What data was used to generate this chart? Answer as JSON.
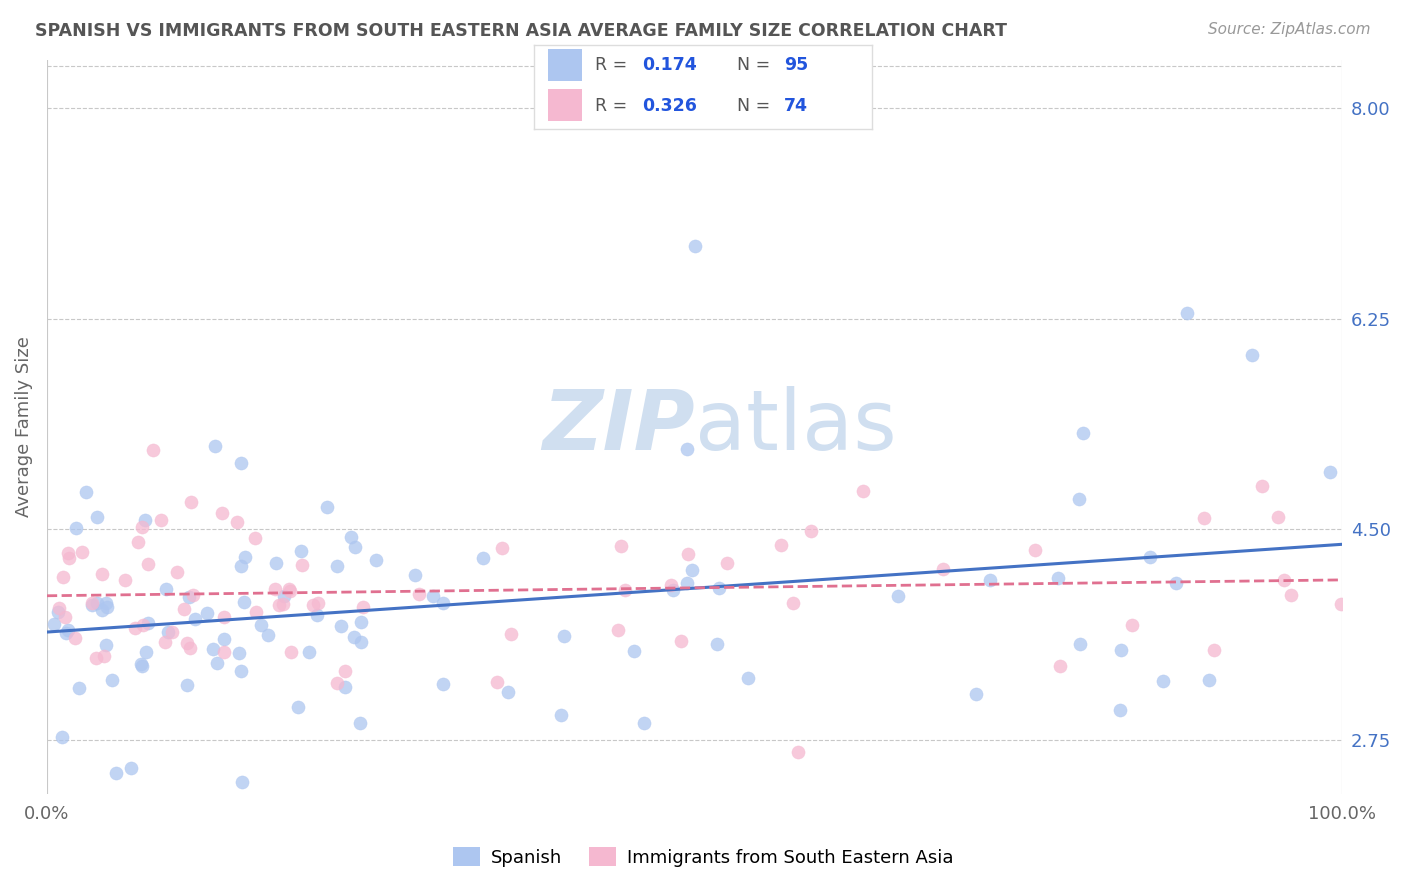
{
  "title": "SPANISH VS IMMIGRANTS FROM SOUTH EASTERN ASIA AVERAGE FAMILY SIZE CORRELATION CHART",
  "source_text": "Source: ZipAtlas.com",
  "ylabel": "Average Family Size",
  "xlim": [
    0,
    100
  ],
  "ylim": [
    2.3,
    8.4
  ],
  "yticks_right": [
    2.75,
    4.5,
    6.25,
    8.0
  ],
  "bg_color": "#ffffff",
  "grid_color": "#c8c8c8",
  "title_color": "#555555",
  "axis_label_color": "#666666",
  "right_tick_color": "#4472c4",
  "legend_R_color": "#2255dd",
  "series1": {
    "name": "Spanish",
    "color": "#adc6f0",
    "R": 0.174,
    "N": 95,
    "line_color": "#4472c4",
    "line_style": "-"
  },
  "series2": {
    "name": "Immigrants from South Eastern Asia",
    "color": "#f5b8d0",
    "R": 0.326,
    "N": 74,
    "line_color": "#e07090",
    "line_style": "--"
  },
  "watermark_color": "#d0dff0",
  "legend_box_color1": "#adc6f0",
  "legend_box_color2": "#f5b8d0"
}
